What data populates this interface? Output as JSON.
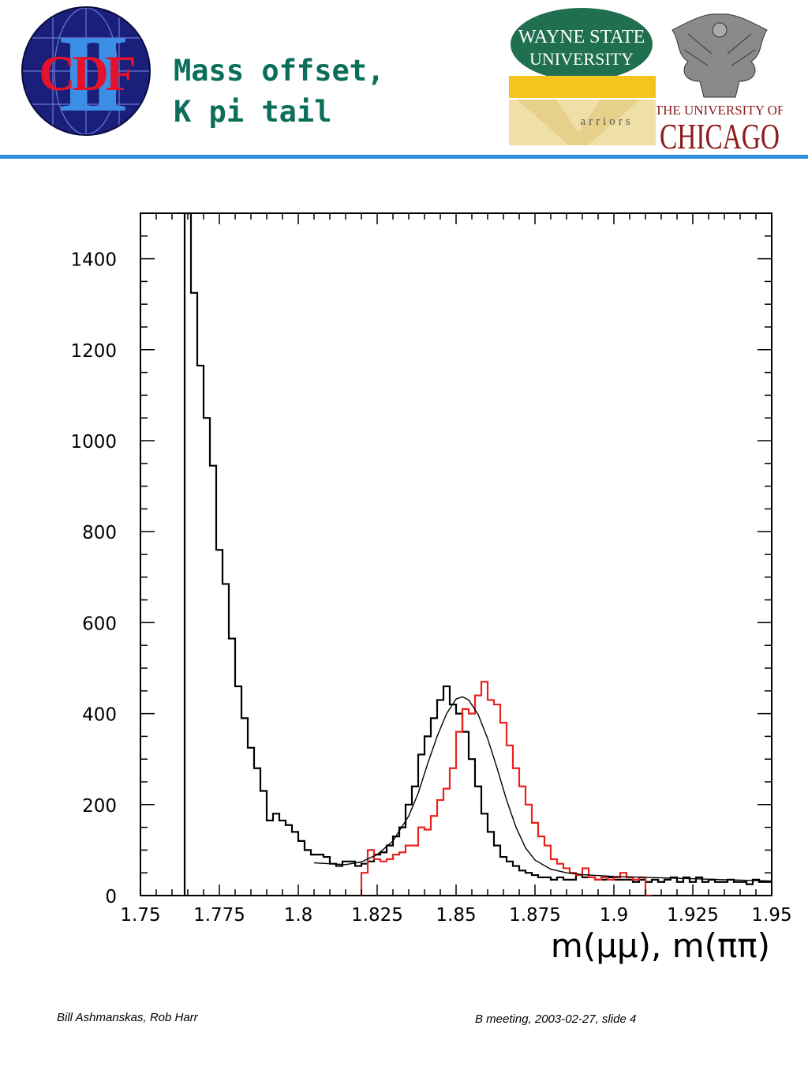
{
  "header": {
    "title_line1": "Mass offset,",
    "title_line2": "K pi tail",
    "logos": {
      "cdf": {
        "letters": "CDF",
        "numeral": "II"
      },
      "wayne_state": {
        "line1": "WAYNE STATE",
        "line2": "UNIVERSITY",
        "tagline": "arriors"
      },
      "uchicago": {
        "line1": "THE UNIVERSITY OF",
        "line2": "CHICAGO"
      }
    },
    "rule_color": "#2d8fe0"
  },
  "footer": {
    "authors": "Bill Ashmanskas, Rob Harr",
    "meeting": "B meeting, 2003-02-27, slide 4"
  },
  "chart_data": {
    "type": "line",
    "title": "",
    "xlabel": "m(μμ), m(ππ)",
    "ylabel": "",
    "xlim": [
      1.75,
      1.95
    ],
    "ylim": [
      0,
      1500
    ],
    "x_ticks": [
      1.75,
      1.775,
      1.8,
      1.825,
      1.85,
      1.875,
      1.9,
      1.925,
      1.95
    ],
    "x_tick_labels": [
      "1.75",
      "1.775",
      "1.8",
      "1.825",
      "1.85",
      "1.875",
      "1.9",
      "1.925",
      "1.95"
    ],
    "y_ticks": [
      0,
      200,
      400,
      600,
      800,
      1000,
      1200,
      1400
    ],
    "y_tick_labels": [
      "0",
      "200",
      "400",
      "600",
      "800",
      "1000",
      "1200",
      "1400"
    ],
    "grid": false,
    "bin_width": 0.002,
    "series": [
      {
        "kind": "histogram",
        "color": "#000000",
        "x_start": 1.764,
        "values": [
          1500,
          1325,
          1165,
          1050,
          945,
          760,
          685,
          565,
          460,
          390,
          325,
          280,
          230,
          165,
          180,
          165,
          155,
          140,
          120,
          100,
          90,
          90,
          85,
          70,
          65,
          75,
          75,
          65,
          70,
          75,
          90,
          95,
          110,
          130,
          150,
          200,
          240,
          310,
          350,
          390,
          430,
          460,
          420,
          400,
          360,
          300,
          240,
          180,
          140,
          110,
          85,
          75,
          65,
          55,
          50,
          45,
          40,
          40,
          35,
          40,
          35,
          35,
          45,
          40,
          40,
          35,
          35,
          40,
          35,
          35,
          35,
          30,
          35,
          30,
          35,
          30,
          35,
          40,
          30,
          40,
          30,
          40,
          30,
          35,
          30,
          30,
          35,
          30,
          30,
          25,
          35,
          30,
          30
        ]
      },
      {
        "kind": "histogram",
        "color": "#e8231f",
        "x_start": 1.82,
        "values": [
          50,
          100,
          80,
          75,
          80,
          90,
          95,
          110,
          110,
          150,
          145,
          175,
          210,
          235,
          280,
          360,
          410,
          400,
          440,
          470,
          430,
          420,
          380,
          330,
          280,
          240,
          200,
          160,
          130,
          110,
          80,
          70,
          60,
          50,
          45,
          60,
          40,
          35,
          40,
          35,
          40,
          50,
          40,
          35,
          40,
          0
        ]
      },
      {
        "kind": "fit",
        "color": "#000000",
        "x": [
          1.805,
          1.81,
          1.815,
          1.82,
          1.825,
          1.83,
          1.835,
          1.838,
          1.841,
          1.844,
          1.847,
          1.85,
          1.852,
          1.854,
          1.857,
          1.86,
          1.863,
          1.866,
          1.869,
          1.872,
          1.875,
          1.88,
          1.885,
          1.89,
          1.9,
          1.91,
          1.92,
          1.93,
          1.94,
          1.95
        ],
        "y": [
          72,
          70,
          68,
          74,
          90,
          120,
          175,
          225,
          290,
          350,
          400,
          432,
          437,
          430,
          398,
          345,
          280,
          210,
          150,
          105,
          78,
          58,
          50,
          46,
          42,
          40,
          38,
          36,
          34,
          32
        ]
      }
    ]
  }
}
